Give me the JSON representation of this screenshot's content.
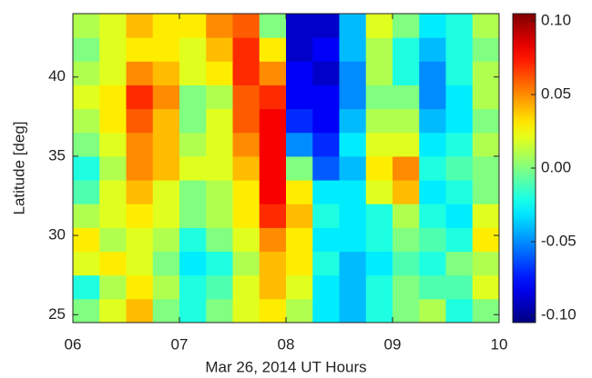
{
  "chart_data": {
    "type": "heatmap",
    "xlabel": "Mar 26, 2014 UT Hours",
    "ylabel": "Latitude [deg]",
    "colormap": "jet",
    "xlim": [
      6,
      10
    ],
    "ylim": [
      24.5,
      44
    ],
    "clim": [
      -0.105,
      0.105
    ],
    "xticks": [
      {
        "value": 6,
        "label": "06"
      },
      {
        "value": 7,
        "label": "07"
      },
      {
        "value": 8,
        "label": "08"
      },
      {
        "value": 9,
        "label": "09"
      },
      {
        "value": 10,
        "label": "10"
      }
    ],
    "yticks": [
      25,
      30,
      35,
      40
    ],
    "cticks": [
      {
        "value": 0.1,
        "label": "0.10"
      },
      {
        "value": 0.05,
        "label": "0.05"
      },
      {
        "value": 0,
        "label": "0.00"
      },
      {
        "value": -0.05,
        "label": "-0.05"
      },
      {
        "value": -0.1,
        "label": "-0.10"
      }
    ],
    "xbins": [
      6,
      6.25,
      6.5,
      6.75,
      7,
      7.25,
      7.5,
      7.75,
      8,
      8.25,
      8.5,
      8.75,
      9,
      9.25,
      9.5,
      9.75,
      10
    ],
    "ybins": [
      24.5,
      26,
      27.5,
      29,
      30.5,
      32,
      33.5,
      35,
      36.5,
      38,
      39.5,
      41,
      42.5,
      44
    ],
    "z": [
      [
        0,
        0.02,
        0.04,
        0,
        -0.02,
        0,
        0.02,
        0.03,
        0.01,
        -0.03,
        -0.04,
        -0.02,
        0,
        0.01,
        -0.02,
        0
      ],
      [
        -0.02,
        0.01,
        0.03,
        0.01,
        -0.02,
        -0.01,
        0.02,
        0.04,
        0.02,
        -0.03,
        -0.04,
        -0.02,
        0,
        -0.01,
        -0.01,
        0.02
      ],
      [
        0.02,
        0.03,
        0.02,
        0,
        -0.03,
        -0.02,
        0.01,
        0.04,
        0.03,
        -0.02,
        -0.04,
        -0.03,
        -0.01,
        -0.02,
        0,
        0.01
      ],
      [
        0.03,
        0.01,
        0.02,
        0.01,
        -0.02,
        0,
        0.02,
        0.05,
        0.03,
        -0.03,
        -0.03,
        -0.02,
        0,
        -0.01,
        -0.02,
        0.03
      ],
      [
        0.01,
        0.02,
        0.03,
        0.02,
        0,
        0.01,
        0.03,
        0.07,
        0.04,
        -0.02,
        -0.03,
        -0.02,
        0.01,
        -0.02,
        -0.03,
        0.02
      ],
      [
        -0.01,
        0.02,
        0.04,
        0.02,
        0,
        0.01,
        0.03,
        0.08,
        0.03,
        -0.03,
        -0.03,
        0.02,
        0.04,
        -0.03,
        -0.02,
        0
      ],
      [
        -0.02,
        0.01,
        0.05,
        0.04,
        0.02,
        0.02,
        0.04,
        0.08,
        0,
        -0.06,
        -0.04,
        0.03,
        0.05,
        -0.02,
        -0.01,
        0
      ],
      [
        0,
        0.02,
        0.05,
        0.04,
        0.01,
        0.02,
        0.05,
        0.08,
        -0.05,
        -0.07,
        -0.03,
        0.02,
        0.02,
        -0.03,
        -0.02,
        0.01
      ],
      [
        0.01,
        0.03,
        0.06,
        0.04,
        0,
        0.02,
        0.06,
        0.08,
        -0.07,
        -0.08,
        -0.04,
        0.01,
        0.01,
        -0.04,
        -0.03,
        0
      ],
      [
        0.02,
        0.03,
        0.07,
        0.05,
        0,
        0.01,
        0.06,
        0.07,
        -0.08,
        -0.08,
        -0.05,
        0,
        0,
        -0.05,
        -0.03,
        0.01
      ],
      [
        0.01,
        0.02,
        0.05,
        0.04,
        0.02,
        0.03,
        0.07,
        0.05,
        -0.08,
        -0.09,
        -0.05,
        0.01,
        -0.02,
        -0.05,
        -0.02,
        0.01
      ],
      [
        0,
        0.02,
        0.03,
        0.03,
        0.02,
        0.04,
        0.07,
        0.03,
        -0.09,
        -0.08,
        -0.04,
        0.01,
        -0.02,
        -0.04,
        -0.02,
        0
      ],
      [
        0.01,
        0.02,
        0.04,
        0.03,
        0.03,
        0.05,
        0.06,
        0,
        -0.09,
        -0.09,
        -0.04,
        0.02,
        0,
        -0.03,
        -0.02,
        0.01
      ]
    ]
  }
}
